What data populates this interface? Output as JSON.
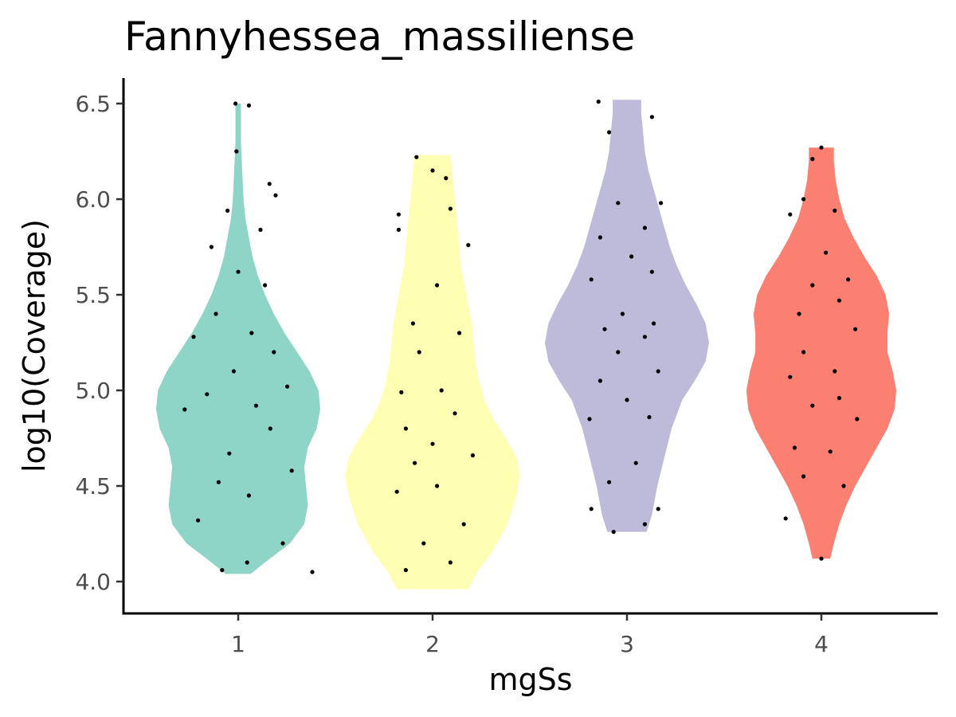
{
  "chart_data": {
    "type": "violin",
    "title": "Fannyhessea_massiliense",
    "xlabel": "mgSs",
    "ylabel": "log10(Coverage)",
    "categories": [
      "1",
      "2",
      "3",
      "4"
    ],
    "ylim": [
      3.85,
      6.65
    ],
    "yticks": [
      4.0,
      4.5,
      5.0,
      5.5,
      6.0,
      6.5
    ],
    "ytick_labels": [
      "4.0",
      "4.5",
      "5.0",
      "5.5",
      "6.0",
      "6.5"
    ],
    "grid": false,
    "legend": "none",
    "colors": [
      "#8ED5C8",
      "#FFFFB3",
      "#BEBADA",
      "#FB8072"
    ],
    "point_color": "#000000",
    "violins": [
      {
        "category": "1",
        "range": [
          4.04,
          6.5
        ],
        "profile": [
          [
            4.04,
            0.14
          ],
          [
            4.1,
            0.3
          ],
          [
            4.2,
            0.58
          ],
          [
            4.3,
            0.74
          ],
          [
            4.4,
            0.78
          ],
          [
            4.5,
            0.76
          ],
          [
            4.6,
            0.74
          ],
          [
            4.7,
            0.78
          ],
          [
            4.8,
            0.88
          ],
          [
            4.9,
            0.92
          ],
          [
            5.0,
            0.9
          ],
          [
            5.1,
            0.8
          ],
          [
            5.2,
            0.66
          ],
          [
            5.3,
            0.52
          ],
          [
            5.4,
            0.4
          ],
          [
            5.5,
            0.3
          ],
          [
            5.6,
            0.22
          ],
          [
            5.7,
            0.16
          ],
          [
            5.8,
            0.12
          ],
          [
            5.9,
            0.08
          ],
          [
            6.0,
            0.06
          ],
          [
            6.1,
            0.05
          ],
          [
            6.2,
            0.04
          ],
          [
            6.3,
            0.03
          ],
          [
            6.4,
            0.03
          ],
          [
            6.5,
            0.03
          ]
        ],
        "points": [
          [
            0.83,
            4.05
          ],
          [
            -0.18,
            4.06
          ],
          [
            0.1,
            4.1
          ],
          [
            0.5,
            4.2
          ],
          [
            -0.45,
            4.32
          ],
          [
            0.12,
            4.45
          ],
          [
            -0.22,
            4.52
          ],
          [
            0.6,
            4.58
          ],
          [
            -0.1,
            4.67
          ],
          [
            0.36,
            4.8
          ],
          [
            -0.6,
            4.9
          ],
          [
            0.2,
            4.92
          ],
          [
            -0.35,
            4.98
          ],
          [
            0.55,
            5.02
          ],
          [
            -0.05,
            5.1
          ],
          [
            0.4,
            5.2
          ],
          [
            -0.5,
            5.28
          ],
          [
            0.15,
            5.3
          ],
          [
            -0.25,
            5.4
          ],
          [
            0.3,
            5.55
          ],
          [
            0.0,
            5.62
          ],
          [
            -0.3,
            5.75
          ],
          [
            0.25,
            5.84
          ],
          [
            -0.12,
            5.94
          ],
          [
            0.42,
            6.02
          ],
          [
            0.35,
            6.08
          ],
          [
            -0.02,
            6.25
          ],
          [
            -0.03,
            6.5
          ],
          [
            0.12,
            6.49
          ]
        ]
      },
      {
        "category": "2",
        "range": [
          3.96,
          6.23
        ],
        "profile": [
          [
            3.96,
            0.4
          ],
          [
            4.05,
            0.5
          ],
          [
            4.15,
            0.66
          ],
          [
            4.3,
            0.84
          ],
          [
            4.45,
            0.94
          ],
          [
            4.55,
            0.98
          ],
          [
            4.65,
            0.94
          ],
          [
            4.75,
            0.82
          ],
          [
            4.85,
            0.68
          ],
          [
            4.95,
            0.58
          ],
          [
            5.05,
            0.52
          ],
          [
            5.15,
            0.48
          ],
          [
            5.25,
            0.46
          ],
          [
            5.35,
            0.44
          ],
          [
            5.45,
            0.4
          ],
          [
            5.55,
            0.36
          ],
          [
            5.65,
            0.32
          ],
          [
            5.75,
            0.3
          ],
          [
            5.85,
            0.28
          ],
          [
            5.95,
            0.26
          ],
          [
            6.05,
            0.24
          ],
          [
            6.15,
            0.22
          ],
          [
            6.23,
            0.2
          ]
        ],
        "points": [
          [
            -0.3,
            4.06
          ],
          [
            0.2,
            4.1
          ],
          [
            -0.1,
            4.2
          ],
          [
            0.35,
            4.3
          ],
          [
            -0.4,
            4.47
          ],
          [
            0.05,
            4.5
          ],
          [
            -0.2,
            4.62
          ],
          [
            0.45,
            4.66
          ],
          [
            0.0,
            4.72
          ],
          [
            -0.3,
            4.8
          ],
          [
            0.25,
            4.88
          ],
          [
            -0.35,
            4.99
          ],
          [
            0.1,
            5.0
          ],
          [
            -0.15,
            5.2
          ],
          [
            0.3,
            5.3
          ],
          [
            -0.22,
            5.35
          ],
          [
            0.05,
            5.55
          ],
          [
            0.4,
            5.76
          ],
          [
            -0.38,
            5.84
          ],
          [
            -0.38,
            5.92
          ],
          [
            0.2,
            5.95
          ],
          [
            0.0,
            6.15
          ],
          [
            -0.18,
            6.22
          ],
          [
            0.15,
            6.11
          ]
        ]
      },
      {
        "category": "3",
        "range": [
          4.26,
          6.52
        ],
        "profile": [
          [
            4.26,
            0.22
          ],
          [
            4.35,
            0.28
          ],
          [
            4.5,
            0.34
          ],
          [
            4.65,
            0.42
          ],
          [
            4.8,
            0.5
          ],
          [
            4.95,
            0.62
          ],
          [
            5.05,
            0.76
          ],
          [
            5.15,
            0.88
          ],
          [
            5.25,
            0.92
          ],
          [
            5.35,
            0.88
          ],
          [
            5.45,
            0.78
          ],
          [
            5.55,
            0.66
          ],
          [
            5.65,
            0.56
          ],
          [
            5.75,
            0.48
          ],
          [
            5.85,
            0.42
          ],
          [
            5.95,
            0.36
          ],
          [
            6.05,
            0.3
          ],
          [
            6.15,
            0.24
          ],
          [
            6.25,
            0.2
          ],
          [
            6.35,
            0.18
          ],
          [
            6.45,
            0.16
          ],
          [
            6.52,
            0.16
          ]
        ],
        "points": [
          [
            -0.4,
            4.38
          ],
          [
            0.2,
            4.3
          ],
          [
            -0.15,
            4.26
          ],
          [
            0.35,
            4.38
          ],
          [
            -0.2,
            4.52
          ],
          [
            0.1,
            4.62
          ],
          [
            -0.42,
            4.85
          ],
          [
            0.25,
            4.86
          ],
          [
            0.0,
            4.95
          ],
          [
            -0.3,
            5.05
          ],
          [
            0.35,
            5.1
          ],
          [
            -0.1,
            5.2
          ],
          [
            0.2,
            5.28
          ],
          [
            -0.25,
            5.32
          ],
          [
            0.3,
            5.35
          ],
          [
            -0.05,
            5.4
          ],
          [
            -0.4,
            5.58
          ],
          [
            0.28,
            5.62
          ],
          [
            0.05,
            5.7
          ],
          [
            -0.3,
            5.8
          ],
          [
            0.2,
            5.85
          ],
          [
            -0.1,
            5.98
          ],
          [
            0.38,
            5.98
          ],
          [
            -0.2,
            6.35
          ],
          [
            0.28,
            6.43
          ],
          [
            -0.32,
            6.51
          ]
        ]
      },
      {
        "category": "4",
        "range": [
          4.12,
          6.27
        ],
        "profile": [
          [
            4.12,
            0.1
          ],
          [
            4.2,
            0.14
          ],
          [
            4.3,
            0.2
          ],
          [
            4.4,
            0.28
          ],
          [
            4.5,
            0.38
          ],
          [
            4.6,
            0.5
          ],
          [
            4.7,
            0.62
          ],
          [
            4.8,
            0.74
          ],
          [
            4.9,
            0.82
          ],
          [
            5.0,
            0.84
          ],
          [
            5.1,
            0.8
          ],
          [
            5.2,
            0.74
          ],
          [
            5.3,
            0.74
          ],
          [
            5.4,
            0.76
          ],
          [
            5.5,
            0.72
          ],
          [
            5.6,
            0.62
          ],
          [
            5.7,
            0.48
          ],
          [
            5.8,
            0.36
          ],
          [
            5.9,
            0.26
          ],
          [
            6.0,
            0.2
          ],
          [
            6.1,
            0.16
          ],
          [
            6.2,
            0.14
          ],
          [
            6.27,
            0.14
          ]
        ],
        "points": [
          [
            -0.4,
            4.33
          ],
          [
            0.0,
            4.12
          ],
          [
            -0.2,
            4.55
          ],
          [
            0.25,
            4.5
          ],
          [
            0.1,
            4.68
          ],
          [
            -0.3,
            4.7
          ],
          [
            0.4,
            4.85
          ],
          [
            -0.1,
            4.92
          ],
          [
            0.2,
            4.96
          ],
          [
            -0.35,
            5.07
          ],
          [
            0.15,
            5.1
          ],
          [
            -0.2,
            5.2
          ],
          [
            0.38,
            5.32
          ],
          [
            -0.25,
            5.4
          ],
          [
            0.2,
            5.47
          ],
          [
            -0.1,
            5.55
          ],
          [
            0.3,
            5.58
          ],
          [
            0.05,
            5.72
          ],
          [
            -0.35,
            5.92
          ],
          [
            0.15,
            5.94
          ],
          [
            -0.2,
            6.0
          ],
          [
            0.0,
            6.27
          ],
          [
            -0.1,
            6.21
          ]
        ]
      }
    ]
  }
}
